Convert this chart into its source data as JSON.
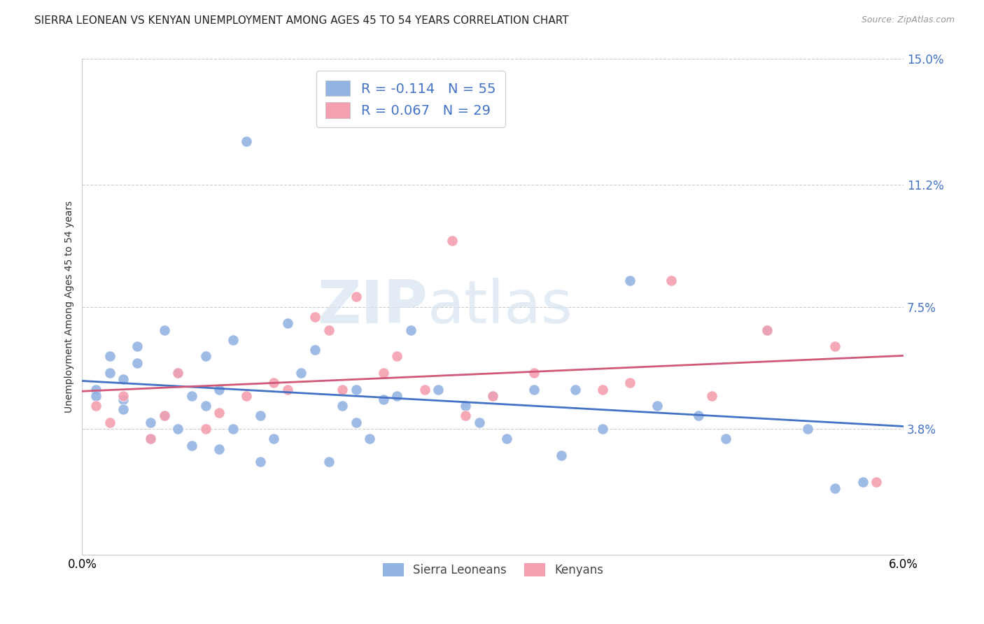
{
  "title": "SIERRA LEONEAN VS KENYAN UNEMPLOYMENT AMONG AGES 45 TO 54 YEARS CORRELATION CHART",
  "source": "Source: ZipAtlas.com",
  "ylabel": "Unemployment Among Ages 45 to 54 years",
  "legend_labels": [
    "Sierra Leoneans",
    "Kenyans"
  ],
  "sl_R": -0.114,
  "sl_N": 55,
  "ke_R": 0.067,
  "ke_N": 29,
  "x_min": 0.0,
  "x_max": 0.06,
  "y_min": 0.0,
  "y_max": 0.15,
  "x_ticks": [
    0.0,
    0.01,
    0.02,
    0.03,
    0.04,
    0.05,
    0.06
  ],
  "x_tick_labels": [
    "0.0%",
    "",
    "",
    "",
    "",
    "",
    "6.0%"
  ],
  "y_ticks": [
    0.038,
    0.075,
    0.112,
    0.15
  ],
  "y_tick_labels": [
    "3.8%",
    "7.5%",
    "11.2%",
    "15.0%"
  ],
  "sl_color": "#92b4e3",
  "ke_color": "#f4a0b0",
  "sl_line_color": "#4472c4",
  "ke_line_color": "#d05878",
  "background_color": "#ffffff",
  "grid_color": "#cccccc",
  "watermark_zip": "ZIP",
  "watermark_atlas": "atlas",
  "title_fontsize": 11,
  "axis_label_fontsize": 10,
  "tick_label_color": "#4472c4",
  "source_fontsize": 9,
  "sl_points_x": [
    0.001,
    0.001,
    0.002,
    0.002,
    0.003,
    0.003,
    0.003,
    0.004,
    0.004,
    0.005,
    0.005,
    0.006,
    0.006,
    0.007,
    0.007,
    0.008,
    0.008,
    0.009,
    0.009,
    0.01,
    0.01,
    0.011,
    0.011,
    0.012,
    0.013,
    0.013,
    0.014,
    0.015,
    0.016,
    0.017,
    0.018,
    0.019,
    0.02,
    0.02,
    0.021,
    0.022,
    0.023,
    0.024,
    0.026,
    0.028,
    0.029,
    0.03,
    0.031,
    0.033,
    0.035,
    0.036,
    0.038,
    0.04,
    0.042,
    0.045,
    0.047,
    0.05,
    0.053,
    0.055,
    0.057
  ],
  "sl_points_y": [
    0.05,
    0.048,
    0.06,
    0.055,
    0.053,
    0.047,
    0.044,
    0.063,
    0.058,
    0.04,
    0.035,
    0.068,
    0.042,
    0.055,
    0.038,
    0.048,
    0.033,
    0.06,
    0.045,
    0.05,
    0.032,
    0.065,
    0.038,
    0.125,
    0.042,
    0.028,
    0.035,
    0.07,
    0.055,
    0.062,
    0.028,
    0.045,
    0.05,
    0.04,
    0.035,
    0.047,
    0.048,
    0.068,
    0.05,
    0.045,
    0.04,
    0.048,
    0.035,
    0.05,
    0.03,
    0.05,
    0.038,
    0.083,
    0.045,
    0.042,
    0.035,
    0.068,
    0.038,
    0.02,
    0.022
  ],
  "ke_points_x": [
    0.001,
    0.002,
    0.003,
    0.005,
    0.006,
    0.007,
    0.009,
    0.01,
    0.012,
    0.014,
    0.015,
    0.017,
    0.018,
    0.019,
    0.02,
    0.022,
    0.023,
    0.025,
    0.027,
    0.028,
    0.03,
    0.033,
    0.038,
    0.04,
    0.043,
    0.046,
    0.05,
    0.055,
    0.058
  ],
  "ke_points_y": [
    0.045,
    0.04,
    0.048,
    0.035,
    0.042,
    0.055,
    0.038,
    0.043,
    0.048,
    0.052,
    0.05,
    0.072,
    0.068,
    0.05,
    0.078,
    0.055,
    0.06,
    0.05,
    0.095,
    0.042,
    0.048,
    0.055,
    0.05,
    0.052,
    0.083,
    0.048,
    0.068,
    0.063,
    0.022
  ]
}
